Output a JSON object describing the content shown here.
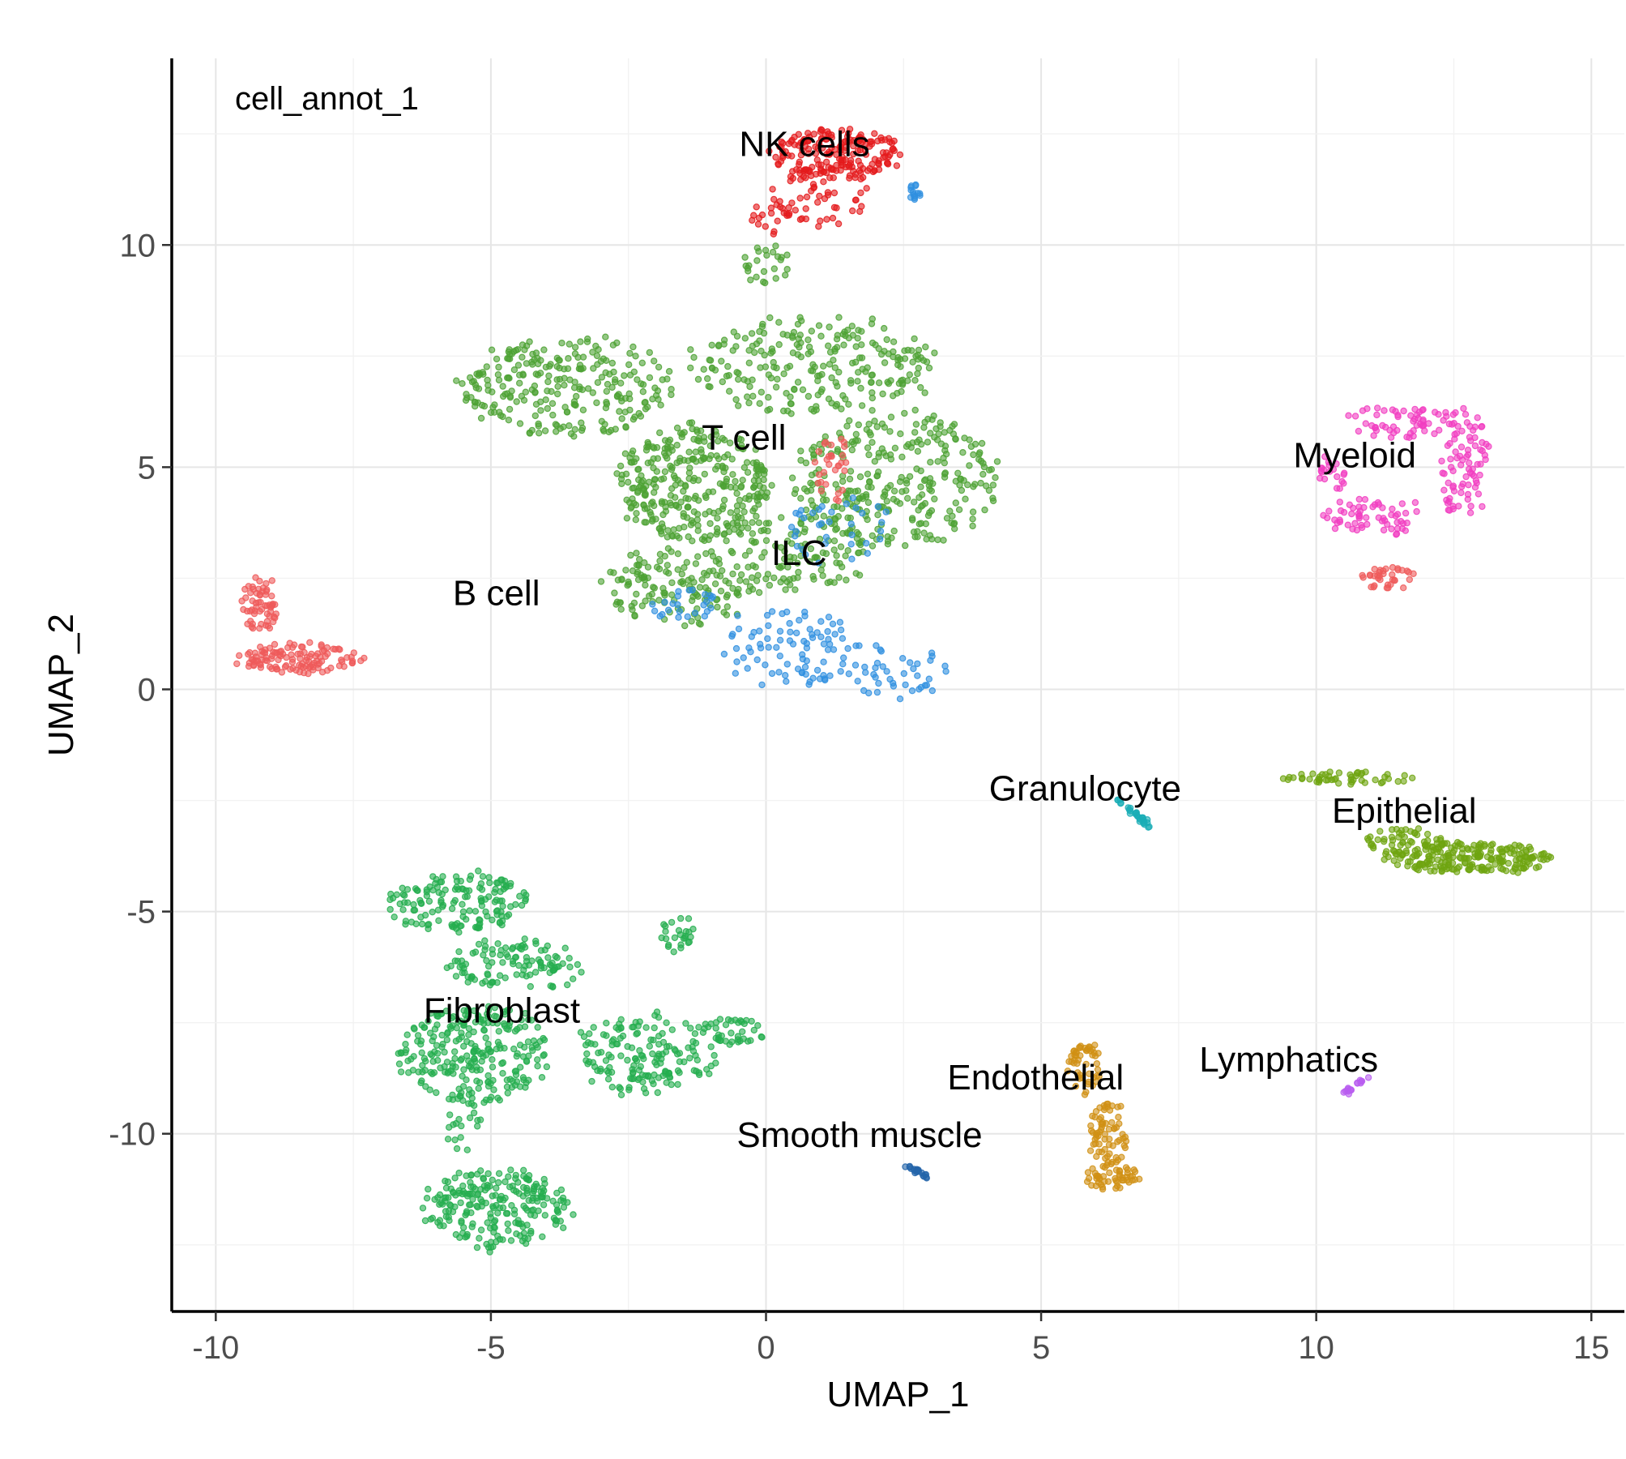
{
  "chart_data": {
    "type": "scatter",
    "tag": "cell_annot_1",
    "xlabel": "UMAP_1",
    "ylabel": "UMAP_2",
    "xlim": [
      -10.8,
      15.6
    ],
    "ylim": [
      -14.0,
      14.2
    ],
    "x_ticks": [
      -10,
      -5,
      0,
      5,
      10,
      15
    ],
    "y_ticks": [
      -10,
      -5,
      0,
      5,
      10
    ],
    "x_tick_labels": [
      "-10",
      "-5",
      "0",
      "5",
      "10",
      "15"
    ],
    "y_tick_labels": [
      "-10",
      "-5",
      "0",
      "5",
      "10"
    ],
    "grid": true,
    "legend": "none",
    "series": [
      {
        "name": "NK cells",
        "color": "#E41A1C",
        "label": "NK cells",
        "label_pos": [
          0.7,
          12.0
        ],
        "blobs": [
          {
            "cx": 1.3,
            "cy": 12.05,
            "rx": 1.2,
            "ry": 0.55,
            "n": 180
          },
          {
            "cx": 1.0,
            "cy": 11.1,
            "rx": 0.9,
            "ry": 0.7,
            "n": 60
          },
          {
            "cx": 0.1,
            "cy": 10.6,
            "rx": 0.35,
            "ry": 0.4,
            "n": 15
          }
        ]
      },
      {
        "name": "T cell",
        "color": "#4DA234",
        "label": "T cell",
        "label_pos": [
          -0.4,
          5.4
        ],
        "blobs": [
          {
            "cx": -3.6,
            "cy": 6.8,
            "rx": 1.9,
            "ry": 1.1,
            "n": 260
          },
          {
            "cx": 0.8,
            "cy": 7.3,
            "rx": 2.3,
            "ry": 1.1,
            "n": 240
          },
          {
            "cx": -1.3,
            "cy": 4.6,
            "rx": 1.4,
            "ry": 1.3,
            "n": 330
          },
          {
            "cx": 2.4,
            "cy": 4.7,
            "rx": 1.9,
            "ry": 1.5,
            "n": 300
          },
          {
            "cx": -1.6,
            "cy": 2.3,
            "rx": 1.4,
            "ry": 0.9,
            "n": 150
          },
          {
            "cx": 0.6,
            "cy": 3.1,
            "rx": 1.2,
            "ry": 0.9,
            "n": 110
          },
          {
            "cx": 0.05,
            "cy": 9.6,
            "rx": 0.45,
            "ry": 0.5,
            "n": 25
          }
        ]
      },
      {
        "name": "ILC",
        "color": "#2F8FE0",
        "label": "ILC",
        "label_pos": [
          0.6,
          2.8
        ],
        "blobs": [
          {
            "cx": 0.4,
            "cy": 0.9,
            "rx": 1.3,
            "ry": 0.9,
            "n": 90
          },
          {
            "cx": 2.4,
            "cy": 0.4,
            "rx": 0.9,
            "ry": 0.7,
            "n": 40
          },
          {
            "cx": -1.5,
            "cy": 1.9,
            "rx": 0.6,
            "ry": 0.35,
            "n": 25
          },
          {
            "cx": 1.3,
            "cy": 3.6,
            "rx": 1.0,
            "ry": 0.8,
            "n": 35
          },
          {
            "cx": 2.7,
            "cy": 11.2,
            "rx": 0.15,
            "ry": 0.2,
            "n": 14
          }
        ]
      },
      {
        "name": "B cell",
        "color": "#EF5A5A",
        "label": "B cell",
        "label_pos": [
          -4.9,
          1.9
        ],
        "blobs": [
          {
            "cx": -8.5,
            "cy": 0.7,
            "rx": 1.1,
            "ry": 0.35,
            "n": 120
          },
          {
            "cx": -9.2,
            "cy": 1.9,
            "rx": 0.35,
            "ry": 0.65,
            "n": 60
          },
          {
            "cx": 1.2,
            "cy": 5.0,
            "rx": 0.3,
            "ry": 0.8,
            "n": 30
          },
          {
            "cx": 11.3,
            "cy": 2.5,
            "rx": 0.5,
            "ry": 0.25,
            "n": 35
          }
        ]
      },
      {
        "name": "Myeloid",
        "color": "#F13EC1",
        "label": "Myeloid",
        "label_pos": [
          10.7,
          5.0
        ],
        "blobs": [
          {
            "cx": 11.5,
            "cy": 6.0,
            "rx": 1.1,
            "ry": 0.35,
            "n": 60
          },
          {
            "cx": 12.7,
            "cy": 5.0,
            "rx": 0.45,
            "ry": 1.3,
            "n": 80
          },
          {
            "cx": 11.0,
            "cy": 3.9,
            "rx": 1.1,
            "ry": 0.45,
            "n": 60
          },
          {
            "cx": 10.3,
            "cy": 4.9,
            "rx": 0.3,
            "ry": 0.4,
            "n": 20
          }
        ]
      },
      {
        "name": "Epithelial",
        "color": "#6FA511",
        "label": "Epithelial",
        "label_pos": [
          11.6,
          -3.0
        ],
        "blobs": [
          {
            "cx": 10.6,
            "cy": -2.0,
            "rx": 1.2,
            "ry": 0.15,
            "n": 50
          },
          {
            "cx": 12.8,
            "cy": -3.8,
            "rx": 1.5,
            "ry": 0.35,
            "n": 220
          },
          {
            "cx": 11.6,
            "cy": -3.4,
            "rx": 0.7,
            "ry": 0.3,
            "n": 50
          }
        ]
      },
      {
        "name": "Granulocyte",
        "color": "#1AADB6",
        "label": "Granulocyte",
        "label_pos": [
          5.8,
          -2.5
        ],
        "line": [
          [
            6.4,
            -2.5
          ],
          [
            7.0,
            -3.1
          ]
        ],
        "n": 30
      },
      {
        "name": "Fibroblast",
        "color": "#25AE4F",
        "label": "Fibroblast",
        "label_pos": [
          -4.8,
          -7.5
        ],
        "blobs": [
          {
            "cx": -5.6,
            "cy": -4.8,
            "rx": 1.3,
            "ry": 0.7,
            "n": 150
          },
          {
            "cx": -4.5,
            "cy": -6.2,
            "rx": 1.3,
            "ry": 0.6,
            "n": 110
          },
          {
            "cx": -5.3,
            "cy": -8.2,
            "rx": 1.4,
            "ry": 1.1,
            "n": 260
          },
          {
            "cx": -2.2,
            "cy": -8.2,
            "rx": 1.3,
            "ry": 0.9,
            "n": 160
          },
          {
            "cx": -0.6,
            "cy": -7.7,
            "rx": 0.6,
            "ry": 0.3,
            "n": 40
          },
          {
            "cx": -1.6,
            "cy": -5.5,
            "rx": 0.3,
            "ry": 0.4,
            "n": 25
          },
          {
            "cx": -4.9,
            "cy": -11.7,
            "rx": 1.3,
            "ry": 0.9,
            "n": 230
          },
          {
            "cx": -5.5,
            "cy": -9.7,
            "rx": 0.35,
            "ry": 0.7,
            "n": 20
          }
        ]
      },
      {
        "name": "Endothelial",
        "color": "#D09014",
        "label": "Endothelial",
        "label_pos": [
          4.9,
          -9.0
        ],
        "blobs": [
          {
            "cx": 5.8,
            "cy": -8.5,
            "rx": 0.3,
            "ry": 0.6,
            "n": 50
          },
          {
            "cx": 6.2,
            "cy": -10.0,
            "rx": 0.35,
            "ry": 0.8,
            "n": 70
          },
          {
            "cx": 6.3,
            "cy": -11.0,
            "rx": 0.5,
            "ry": 0.3,
            "n": 50
          }
        ]
      },
      {
        "name": "Smooth muscle",
        "color": "#2565AA",
        "label": "Smooth muscle",
        "label_pos": [
          1.7,
          -10.3
        ],
        "line": [
          [
            2.5,
            -10.7
          ],
          [
            3.0,
            -11.0
          ]
        ],
        "n": 22
      },
      {
        "name": "Lymphatics",
        "color": "#B95DF0",
        "label": "Lymphatics",
        "label_pos": [
          9.5,
          -8.6
        ],
        "line": [
          [
            10.5,
            -9.1
          ],
          [
            11.0,
            -8.7
          ]
        ],
        "n": 18
      }
    ]
  }
}
